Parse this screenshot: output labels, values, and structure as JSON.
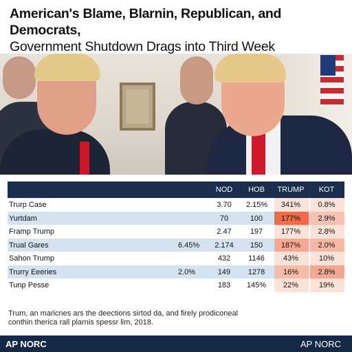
{
  "headline": {
    "line1": "American's Blame, Blarnin, Republican, and Democrats,",
    "line2": "Government Shutdown Drags into Third Week"
  },
  "table": {
    "headers": [
      "",
      "",
      "NOD",
      "HOB",
      "TRUMP",
      "KOT"
    ],
    "rows": [
      {
        "label": "Trurp Case",
        "extra": "",
        "c1": "3.70",
        "c2": "2.15%",
        "c3": "341%",
        "c4": "0.8%",
        "shade": false,
        "c3color": "#fce3da",
        "c4color": "#fce3da"
      },
      {
        "label": "Yurtdam",
        "extra": "",
        "c1": "70",
        "c2": "100",
        "c3": "177%",
        "c4": "2.9%",
        "shade": true,
        "c3color": "#f26a4a",
        "c4color": "#f6c3b3"
      },
      {
        "label": "Framp Trump",
        "extra": "",
        "c1": "2.47",
        "c2": "197",
        "c3": "177%",
        "c4": "2.8%",
        "shade": false,
        "c3color": "#fce3da",
        "c4color": "#fce3da"
      },
      {
        "label": "Trual Gares",
        "extra": "6.45%",
        "c1": "2.174",
        "c2": "150",
        "c3": "187%",
        "c4": "2.0%",
        "shade": true,
        "c3color": "#f7a98f",
        "c4color": "#f7b9a4"
      },
      {
        "label": "Sahon Trump",
        "extra": "",
        "c1": "432",
        "c2": "1146",
        "c3": "43%",
        "c4": "10%",
        "shade": false,
        "c3color": "#fce3da",
        "c4color": "#fce3da"
      },
      {
        "label": "Trurry Eeeries",
        "extra": "2.0%",
        "c1": "149",
        "c2": "1278",
        "c3": "16%",
        "c4": "2.8%",
        "shade": true,
        "c3color": "#f7bca8",
        "c4color": "#f4a891"
      },
      {
        "label": "Tunp Pesse",
        "extra": "",
        "c1": "183",
        "c2": "145%",
        "c3": "22%",
        "c4": "19%",
        "shade": false,
        "c3color": "#fce3da",
        "c4color": "#fce3da"
      }
    ]
  },
  "footnote": {
    "line1": "Trum, an maricnes ars the deections sirtod da, and firely prodiconeal",
    "line2": "conthin therica rall plarnis spessr lim, 2018."
  },
  "footer": {
    "left": "AP NORC",
    "right": "AP NORC"
  }
}
